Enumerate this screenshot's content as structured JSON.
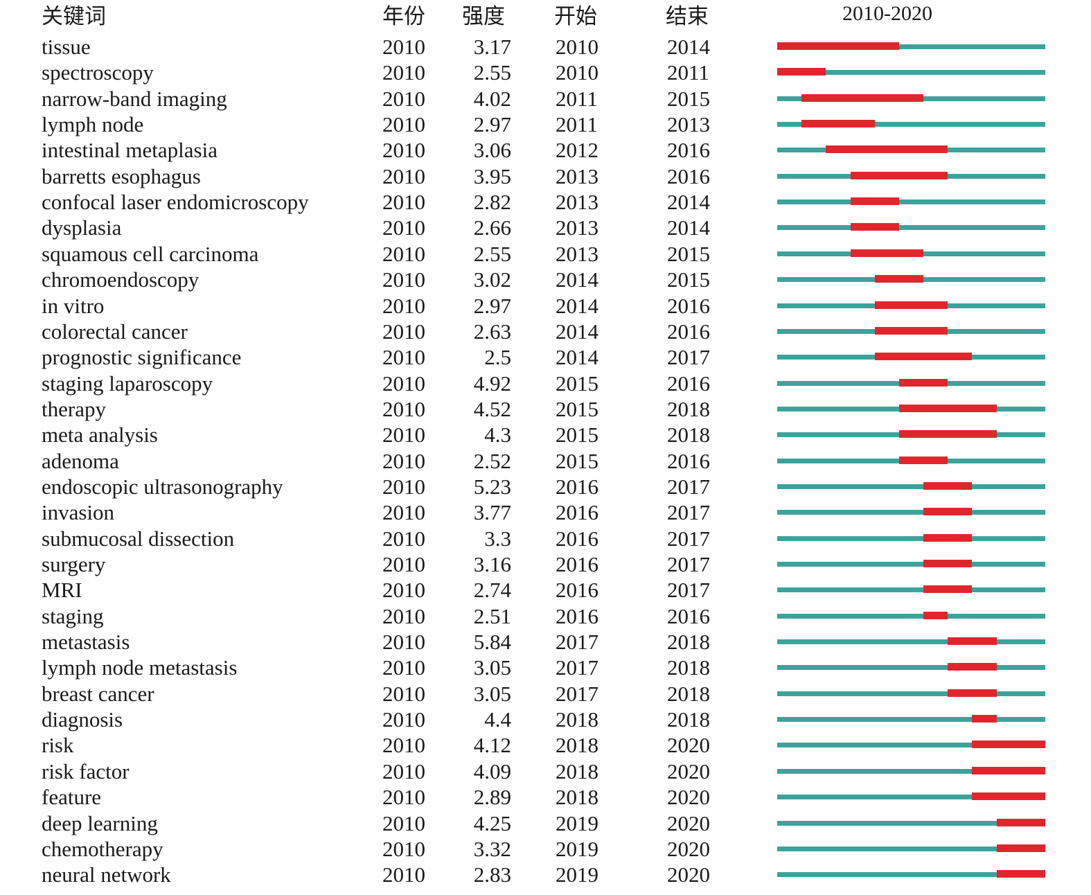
{
  "colors": {
    "timeline": "#3ba39b",
    "burst": "#e0262c",
    "text": "#1a1a1a"
  },
  "chart_data": {
    "type": "table",
    "headers": {
      "keyword": "关键词",
      "year": "年份",
      "strength": "强度",
      "begin": "开始",
      "end": "结束",
      "range": "2010-2020"
    },
    "range_start": 2010,
    "range_end": 2020,
    "rows": [
      {
        "keyword": "tissue",
        "year": "2010",
        "strength": "3.17",
        "begin": "2010",
        "end": "2014"
      },
      {
        "keyword": "spectroscopy",
        "year": "2010",
        "strength": "2.55",
        "begin": "2010",
        "end": "2011"
      },
      {
        "keyword": "narrow-band imaging",
        "year": "2010",
        "strength": "4.02",
        "begin": "2011",
        "end": "2015"
      },
      {
        "keyword": "lymph node",
        "year": "2010",
        "strength": "2.97",
        "begin": "2011",
        "end": "2013"
      },
      {
        "keyword": "intestinal metaplasia",
        "year": "2010",
        "strength": "3.06",
        "begin": "2012",
        "end": "2016"
      },
      {
        "keyword": "barretts esophagus",
        "year": "2010",
        "strength": "3.95",
        "begin": "2013",
        "end": "2016"
      },
      {
        "keyword": "confocal laser endomicroscopy",
        "year": "2010",
        "strength": "2.82",
        "begin": "2013",
        "end": "2014"
      },
      {
        "keyword": "dysplasia",
        "year": "2010",
        "strength": "2.66",
        "begin": "2013",
        "end": "2014"
      },
      {
        "keyword": "squamous cell carcinoma",
        "year": "2010",
        "strength": "2.55",
        "begin": "2013",
        "end": "2015"
      },
      {
        "keyword": "chromoendoscopy",
        "year": "2010",
        "strength": "3.02",
        "begin": "2014",
        "end": "2015"
      },
      {
        "keyword": "in vitro",
        "year": "2010",
        "strength": "2.97",
        "begin": "2014",
        "end": "2016"
      },
      {
        "keyword": "colorectal cancer",
        "year": "2010",
        "strength": "2.63",
        "begin": "2014",
        "end": "2016"
      },
      {
        "keyword": "prognostic significance",
        "year": "2010",
        "strength": "2.5",
        "begin": "2014",
        "end": "2017"
      },
      {
        "keyword": "staging laparoscopy",
        "year": "2010",
        "strength": "4.92",
        "begin": "2015",
        "end": "2016"
      },
      {
        "keyword": "therapy",
        "year": "2010",
        "strength": "4.52",
        "begin": "2015",
        "end": "2018"
      },
      {
        "keyword": "meta analysis",
        "year": "2010",
        "strength": "4.3",
        "begin": "2015",
        "end": "2018"
      },
      {
        "keyword": "adenoma",
        "year": "2010",
        "strength": "2.52",
        "begin": "2015",
        "end": "2016"
      },
      {
        "keyword": "endoscopic ultrasonography",
        "year": "2010",
        "strength": "5.23",
        "begin": "2016",
        "end": "2017"
      },
      {
        "keyword": "invasion",
        "year": "2010",
        "strength": "3.77",
        "begin": "2016",
        "end": "2017"
      },
      {
        "keyword": "submucosal dissection",
        "year": "2010",
        "strength": "3.3",
        "begin": "2016",
        "end": "2017"
      },
      {
        "keyword": "surgery",
        "year": "2010",
        "strength": "3.16",
        "begin": "2016",
        "end": "2017"
      },
      {
        "keyword": "MRI",
        "year": "2010",
        "strength": "2.74",
        "begin": "2016",
        "end": "2017"
      },
      {
        "keyword": "staging",
        "year": "2010",
        "strength": "2.51",
        "begin": "2016",
        "end": "2016"
      },
      {
        "keyword": "metastasis",
        "year": "2010",
        "strength": "5.84",
        "begin": "2017",
        "end": "2018"
      },
      {
        "keyword": "lymph node metastasis",
        "year": "2010",
        "strength": "3.05",
        "begin": "2017",
        "end": "2018"
      },
      {
        "keyword": "breast cancer",
        "year": "2010",
        "strength": "3.05",
        "begin": "2017",
        "end": "2018"
      },
      {
        "keyword": "diagnosis",
        "year": "2010",
        "strength": "4.4",
        "begin": "2018",
        "end": "2018"
      },
      {
        "keyword": "risk",
        "year": "2010",
        "strength": "4.12",
        "begin": "2018",
        "end": "2020"
      },
      {
        "keyword": "risk factor",
        "year": "2010",
        "strength": "4.09",
        "begin": "2018",
        "end": "2020"
      },
      {
        "keyword": "feature",
        "year": "2010",
        "strength": "2.89",
        "begin": "2018",
        "end": "2020"
      },
      {
        "keyword": "deep learning",
        "year": "2010",
        "strength": "4.25",
        "begin": "2019",
        "end": "2020"
      },
      {
        "keyword": "chemotherapy",
        "year": "2010",
        "strength": "3.32",
        "begin": "2019",
        "end": "2020"
      },
      {
        "keyword": "neural network",
        "year": "2010",
        "strength": "2.83",
        "begin": "2019",
        "end": "2020"
      }
    ]
  }
}
